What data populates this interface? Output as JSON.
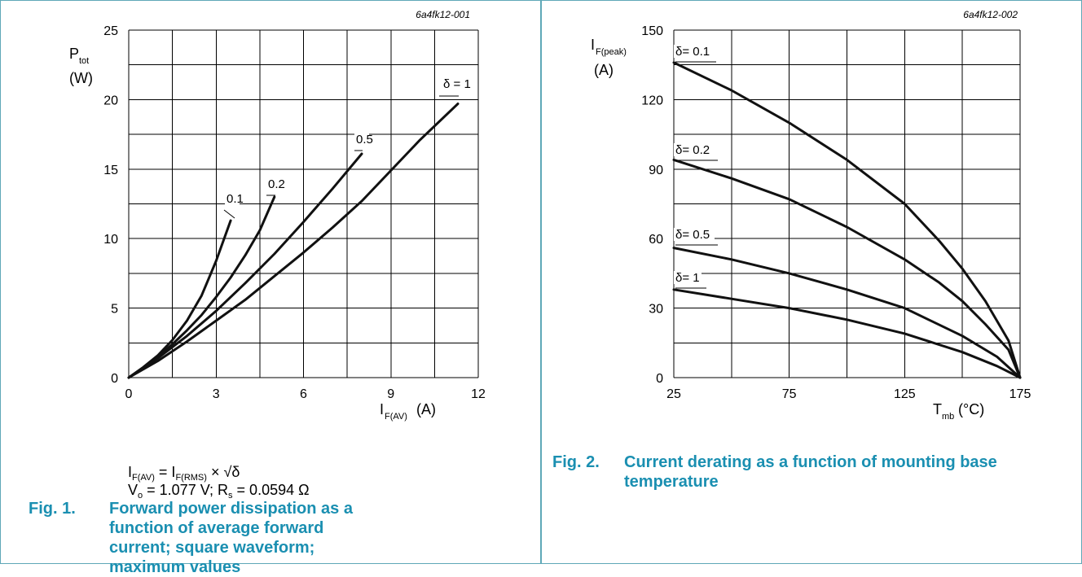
{
  "figures": [
    {
      "id": "6a4fk12-001",
      "ylabel_main": "P",
      "ylabel_sub": "tot",
      "ylabel_unit": "(W)",
      "xlabel_main": "I",
      "xlabel_sub": "F(AV)",
      "xlabel_unit": "(A)",
      "formula_line1": {
        "a": "I",
        "a_sub": "F(AV)",
        "mid": " = I",
        "b_sub": "F(RMS)",
        "tail": " × √δ"
      },
      "formula_line2": {
        "a": "V",
        "a_sub": "o",
        "mid": " = 1.077 V; R",
        "b_sub": "s",
        "tail": " = 0.0594 Ω"
      },
      "caption_number": "Fig. 1.",
      "caption_text": "Forward power dissipation as a function of average forward current; square waveform; maximum values"
    },
    {
      "id": "6a4fk12-002",
      "ylabel_main": "I",
      "ylabel_sub": "F(peak)",
      "ylabel_unit": "(A)",
      "xlabel_main": "T",
      "xlabel_sub": "mb",
      "xlabel_unit": "(°C)",
      "caption_number": "Fig. 2.",
      "caption_text": "Current derating as a function of mounting base temperature"
    }
  ],
  "chart_data": [
    {
      "type": "line",
      "xlabel": "IF(AV) (A)",
      "ylabel": "Ptot (W)",
      "xlim": [
        0,
        12
      ],
      "ylim": [
        0,
        25
      ],
      "x_ticks": [
        0,
        3,
        6,
        9,
        12
      ],
      "y_ticks": [
        0,
        5,
        10,
        15,
        20,
        25
      ],
      "x_grid": [
        0,
        1.5,
        3,
        4.5,
        6,
        7.5,
        9,
        10.5,
        12
      ],
      "y_grid": [
        0,
        2.5,
        5,
        7.5,
        10,
        12.5,
        15,
        17.5,
        20,
        22.5,
        25
      ],
      "series": [
        {
          "name": "0.1",
          "points": [
            [
              0,
              0
            ],
            [
              0.5,
              0.75
            ],
            [
              1,
              1.6
            ],
            [
              1.5,
              2.7
            ],
            [
              2,
              4.1
            ],
            [
              2.5,
              5.9
            ],
            [
              3,
              8.4
            ],
            [
              3.5,
              11.3
            ]
          ]
        },
        {
          "name": "0.2",
          "points": [
            [
              0,
              0
            ],
            [
              0.5,
              0.7
            ],
            [
              1,
              1.5
            ],
            [
              1.5,
              2.4
            ],
            [
              2,
              3.4
            ],
            [
              2.5,
              4.5
            ],
            [
              3,
              5.8
            ],
            [
              3.5,
              7.2
            ],
            [
              4,
              8.8
            ],
            [
              4.5,
              10.6
            ],
            [
              5,
              13.0
            ]
          ]
        },
        {
          "name": "0.5",
          "points": [
            [
              0,
              0
            ],
            [
              1,
              1.4
            ],
            [
              2,
              3.0
            ],
            [
              3,
              4.8
            ],
            [
              4,
              6.8
            ],
            [
              5,
              8.9
            ],
            [
              6,
              11.2
            ],
            [
              7,
              13.6
            ],
            [
              8,
              16.1
            ]
          ]
        },
        {
          "name": "δ = 1",
          "points": [
            [
              0,
              0
            ],
            [
              1,
              1.2
            ],
            [
              2,
              2.6
            ],
            [
              3,
              4.1
            ],
            [
              4,
              5.6
            ],
            [
              5,
              7.3
            ],
            [
              6,
              9.0
            ],
            [
              7,
              10.8
            ],
            [
              8,
              12.7
            ],
            [
              9,
              14.9
            ],
            [
              10,
              17.1
            ],
            [
              11.3,
              19.7
            ]
          ]
        }
      ]
    },
    {
      "type": "line",
      "xlabel": "Tmb (°C)",
      "ylabel": "IF(peak) (A)",
      "xlim": [
        25,
        175
      ],
      "ylim": [
        0,
        150
      ],
      "x_ticks": [
        25,
        75,
        125,
        175
      ],
      "y_ticks": [
        0,
        30,
        60,
        90,
        120,
        150
      ],
      "x_grid": [
        25,
        50,
        75,
        100,
        125,
        150,
        175
      ],
      "y_grid": [
        0,
        15,
        30,
        45,
        60,
        75,
        90,
        105,
        120,
        135,
        150
      ],
      "series": [
        {
          "name": "δ= 0.1",
          "points": [
            [
              25,
              136
            ],
            [
              50,
              124
            ],
            [
              75,
              110
            ],
            [
              100,
              94
            ],
            [
              125,
              75
            ],
            [
              140,
              59
            ],
            [
              150,
              47
            ],
            [
              160,
              33
            ],
            [
              170,
              16
            ],
            [
              175,
              0
            ]
          ]
        },
        {
          "name": "δ= 0.2",
          "points": [
            [
              25,
              94
            ],
            [
              50,
              86
            ],
            [
              75,
              77
            ],
            [
              100,
              65
            ],
            [
              125,
              51
            ],
            [
              140,
              41
            ],
            [
              150,
              33
            ],
            [
              160,
              23
            ],
            [
              170,
              12
            ],
            [
              175,
              0
            ]
          ]
        },
        {
          "name": "δ= 0.5",
          "points": [
            [
              25,
              56
            ],
            [
              50,
              51
            ],
            [
              75,
              45
            ],
            [
              100,
              38
            ],
            [
              125,
              30
            ],
            [
              150,
              18
            ],
            [
              165,
              9
            ],
            [
              175,
              0
            ]
          ]
        },
        {
          "name": "δ= 1",
          "points": [
            [
              25,
              38
            ],
            [
              50,
              34
            ],
            [
              75,
              30
            ],
            [
              100,
              25
            ],
            [
              125,
              19
            ],
            [
              150,
              11
            ],
            [
              165,
              5
            ],
            [
              175,
              0
            ]
          ]
        }
      ]
    }
  ]
}
